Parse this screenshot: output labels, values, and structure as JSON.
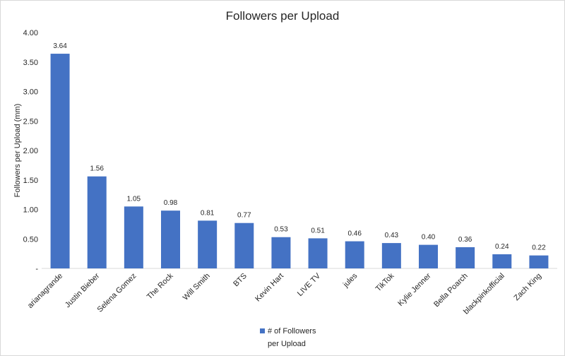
{
  "chart_data": {
    "type": "bar",
    "title": "Followers per Upload",
    "xlabel": "",
    "ylabel": "Followers per Upload (mm)",
    "categories": [
      "arianagrande",
      "Justin Bieber",
      "Selena Gomez",
      "The Rock",
      "Will Smith",
      "BTS",
      "Kevin Hart",
      "LIVE TV",
      "jules",
      "TikTok",
      "Kylie Jenner",
      "Bella Poarch",
      "blackpinkofficial",
      "Zach King"
    ],
    "series": [
      {
        "name": "# of Followers per Upload",
        "color": "#4472c4",
        "values": [
          3.64,
          1.56,
          1.05,
          0.98,
          0.81,
          0.77,
          0.53,
          0.51,
          0.46,
          0.43,
          0.4,
          0.36,
          0.24,
          0.22
        ]
      }
    ],
    "data_labels": [
      "3.64",
      "1.56",
      "1.05",
      "0.98",
      "0.81",
      "0.77",
      "0.53",
      "0.51",
      "0.46",
      "0.43",
      "0.40",
      "0.36",
      "0.24",
      "0.22"
    ],
    "ylim": [
      0,
      4
    ],
    "yticks": [
      0,
      0.5,
      1,
      1.5,
      2,
      2.5,
      3,
      3.5,
      4
    ],
    "ytick_labels": [
      "-",
      "0.50",
      "1.00",
      "1.50",
      "2.00",
      "2.50",
      "3.00",
      "3.50",
      "4.00"
    ],
    "grid": false,
    "legend": {
      "position": "bottom",
      "lines": [
        "# of Followers",
        "per Upload"
      ]
    },
    "axis_color": "#d9d9d9"
  }
}
